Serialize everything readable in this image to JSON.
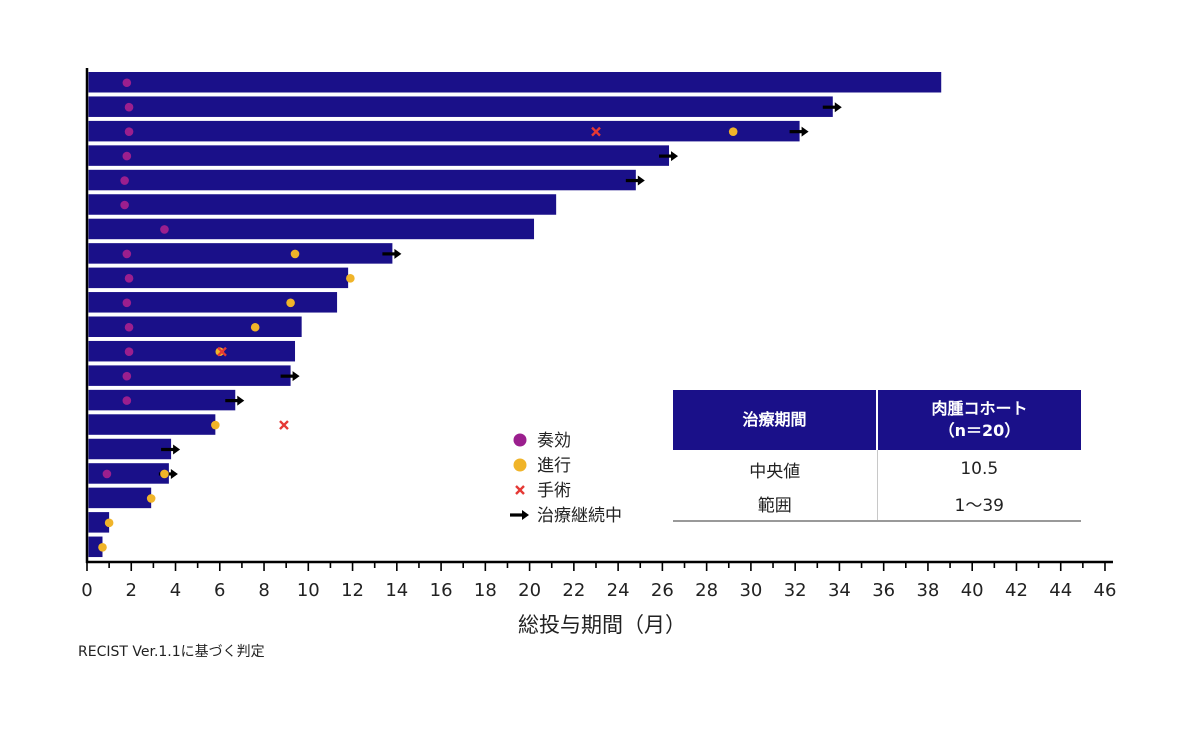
{
  "chart_data": {
    "type": "bar",
    "orientation": "horizontal",
    "xlabel": "総投与期間（月）",
    "xlim": [
      0,
      46
    ],
    "x_ticks": [
      0,
      2,
      4,
      6,
      8,
      10,
      12,
      14,
      16,
      18,
      20,
      22,
      24,
      26,
      28,
      30,
      32,
      34,
      36,
      38,
      40,
      42,
      44,
      46
    ],
    "bar_color": "#1a1089",
    "bars": [
      {
        "duration": 38.6,
        "response": 1.8,
        "progression": null,
        "surgery": null,
        "ongoing": false
      },
      {
        "duration": 33.7,
        "response": 1.9,
        "progression": null,
        "surgery": null,
        "ongoing": true
      },
      {
        "duration": 32.2,
        "response": 1.9,
        "progression": 29.2,
        "surgery": 23.0,
        "ongoing": true
      },
      {
        "duration": 26.3,
        "response": 1.8,
        "progression": null,
        "surgery": null,
        "ongoing": true
      },
      {
        "duration": 24.8,
        "response": 1.7,
        "progression": null,
        "surgery": null,
        "ongoing": true
      },
      {
        "duration": 21.2,
        "response": 1.7,
        "progression": null,
        "surgery": null,
        "ongoing": false
      },
      {
        "duration": 20.2,
        "response": 3.5,
        "progression": null,
        "surgery": null,
        "ongoing": false
      },
      {
        "duration": 13.8,
        "response": 1.8,
        "progression": 9.4,
        "surgery": null,
        "ongoing": true
      },
      {
        "duration": 11.8,
        "response": 1.9,
        "progression": 11.9,
        "surgery": null,
        "ongoing": false
      },
      {
        "duration": 11.3,
        "response": 1.8,
        "progression": 9.2,
        "surgery": null,
        "ongoing": false
      },
      {
        "duration": 9.7,
        "response": 1.9,
        "progression": 7.6,
        "surgery": null,
        "ongoing": false
      },
      {
        "duration": 9.4,
        "response": 1.9,
        "progression": 6.0,
        "surgery": 6.1,
        "ongoing": false
      },
      {
        "duration": 9.2,
        "response": 1.8,
        "progression": null,
        "surgery": null,
        "ongoing": true
      },
      {
        "duration": 6.7,
        "response": 1.8,
        "progression": null,
        "surgery": null,
        "ongoing": true
      },
      {
        "duration": 5.8,
        "response": null,
        "progression": 5.8,
        "surgery": 8.9,
        "ongoing": false
      },
      {
        "duration": 3.8,
        "response": null,
        "progression": null,
        "surgery": null,
        "ongoing": true
      },
      {
        "duration": 3.7,
        "response": 0.9,
        "progression": 3.5,
        "surgery": null,
        "ongoing": true
      },
      {
        "duration": 2.9,
        "response": null,
        "progression": 2.9,
        "surgery": null,
        "ongoing": false
      },
      {
        "duration": 1.0,
        "response": null,
        "progression": 1.0,
        "surgery": null,
        "ongoing": false
      },
      {
        "duration": 0.7,
        "response": null,
        "progression": 0.7,
        "surgery": null,
        "ongoing": false
      }
    ],
    "legend": [
      {
        "key": "response",
        "label": "奏効",
        "color": "#9b1f8e",
        "marker": "circle"
      },
      {
        "key": "progression",
        "label": "進行",
        "color": "#f0b429",
        "marker": "circle"
      },
      {
        "key": "surgery",
        "label": "手術",
        "color": "#e53935",
        "marker": "cross"
      },
      {
        "key": "ongoing",
        "label": "治療継続中",
        "color": "#000000",
        "marker": "arrow"
      }
    ],
    "legend_position": "lower-middle"
  },
  "summary_table": {
    "header_left": "治療期間",
    "header_right_line1": "肉腫コホート",
    "header_right_line2": "（n＝20）",
    "rows": [
      {
        "label": "中央値",
        "value": "10.5"
      },
      {
        "label": "範囲",
        "value": "1～39"
      }
    ]
  },
  "footnote": "RECIST Ver.1.1に基づく判定"
}
